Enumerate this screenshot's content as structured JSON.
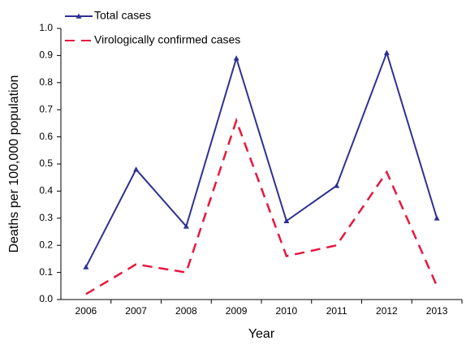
{
  "chart_data": {
    "type": "line",
    "x_label": "Year",
    "y_label": "Deaths per 100,000 population",
    "categories": [
      "2006",
      "2007",
      "2008",
      "2009",
      "2010",
      "2011",
      "2012",
      "2013"
    ],
    "series": [
      {
        "name": "Total cases",
        "color": "#2e3192",
        "marker": "triangle",
        "dashed": false,
        "values": [
          0.12,
          0.48,
          0.27,
          0.89,
          0.29,
          0.42,
          0.91,
          0.3
        ]
      },
      {
        "name": "Virologically confirmed cases",
        "color": "#e8173d",
        "marker": "none",
        "dashed": true,
        "values": [
          0.02,
          0.13,
          0.1,
          0.66,
          0.16,
          0.2,
          0.47,
          0.05
        ]
      }
    ],
    "ylim": [
      0,
      1
    ],
    "yticks": [
      {
        "value": 0,
        "label": "0.0"
      },
      0.1,
      0.2,
      0.3,
      0.4,
      0.5,
      0.6,
      0.7,
      0.8,
      0.9,
      {
        "value": 1,
        "label": "1.0"
      }
    ],
    "grid": false,
    "legend": "top-left"
  }
}
